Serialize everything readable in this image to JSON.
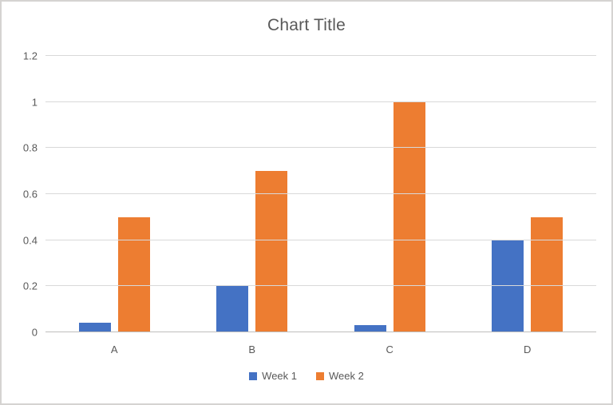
{
  "chart": {
    "title": "Chart Title",
    "legend": [
      {
        "label": "Week 1",
        "color": "#4472C4"
      },
      {
        "label": "Week 2",
        "color": "#ED7D31"
      }
    ]
  },
  "chart_data": {
    "type": "bar",
    "title": "Chart Title",
    "categories": [
      "A",
      "B",
      "C",
      "D"
    ],
    "series": [
      {
        "name": "Week 1",
        "color": "#4472C4",
        "values": [
          0.04,
          0.2,
          0.03,
          0.4
        ]
      },
      {
        "name": "Week 2",
        "color": "#ED7D31",
        "values": [
          0.5,
          0.7,
          1.0,
          0.5
        ]
      }
    ],
    "xlabel": "",
    "ylabel": "",
    "ylim": [
      0,
      1.2
    ],
    "yticks": [
      0,
      0.2,
      0.4,
      0.6,
      0.8,
      1,
      1.2
    ],
    "grid": "horizontal",
    "legend_position": "bottom"
  },
  "colors": {
    "text": "#595959",
    "gridline": "#D9D9D9",
    "axis_line": "#BFBEBC",
    "border": "#D5D3D1",
    "background": "#FFFFFF"
  }
}
